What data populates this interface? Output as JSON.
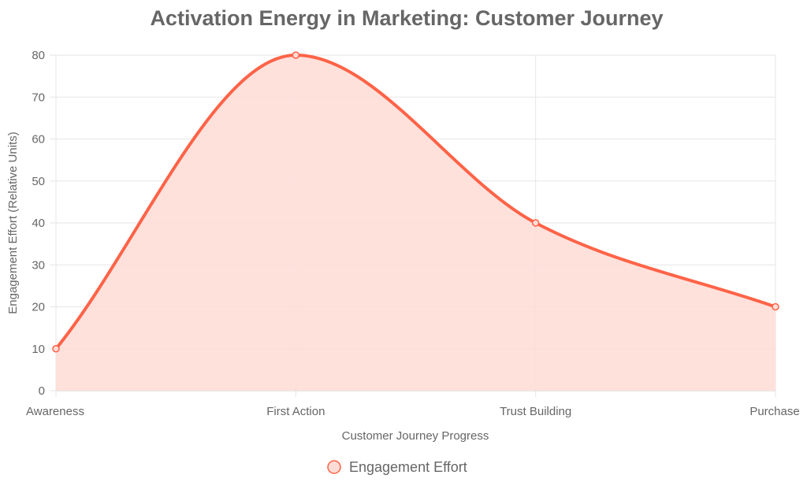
{
  "chart_data": {
    "type": "line",
    "title": "Activation Energy in Marketing: Customer Journey",
    "xlabel": "Customer Journey Progress",
    "ylabel": "Engagement Effort (Relative Units)",
    "categories": [
      "Awareness",
      "First Action",
      "Trust Building",
      "Purchase"
    ],
    "series": [
      {
        "name": "Engagement Effort",
        "values": [
          10,
          80,
          40,
          20
        ]
      }
    ],
    "ylim": [
      0,
      80
    ],
    "yticks": [
      0,
      10,
      20,
      30,
      40,
      50,
      60,
      70,
      80
    ],
    "fill": true,
    "smooth": true,
    "grid": true,
    "legend": "bottom",
    "colors": {
      "line": "#ff6347",
      "fill": "#ffdcd6",
      "point_fill": "#ffdcd6"
    }
  }
}
